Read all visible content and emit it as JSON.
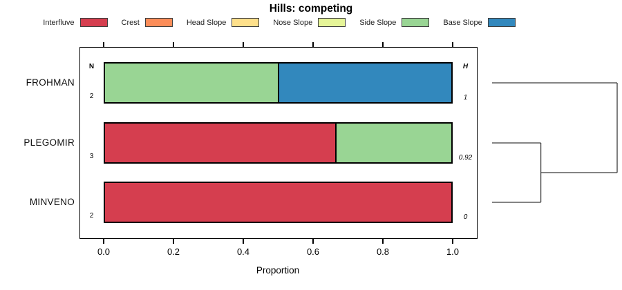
{
  "chart_data": {
    "type": "bar",
    "orientation": "horizontal",
    "stacked": true,
    "title": "Hills: competing",
    "xlabel": "Proportion",
    "xlim": [
      0,
      1
    ],
    "x_ticks": [
      {
        "value": 0.0,
        "label": "0.0"
      },
      {
        "value": 0.2,
        "label": "0.2"
      },
      {
        "value": 0.4,
        "label": "0.4"
      },
      {
        "value": 0.6,
        "label": "0.6"
      },
      {
        "value": 0.8,
        "label": "0.8"
      },
      {
        "value": 1.0,
        "label": "1.0"
      }
    ],
    "legend": {
      "position": "top",
      "entries": [
        {
          "label": "Interfluve",
          "color": "#d53e4f"
        },
        {
          "label": "Crest",
          "color": "#fc8d59"
        },
        {
          "label": "Head Slope",
          "color": "#fee08b"
        },
        {
          "label": "Nose Slope",
          "color": "#e6f598"
        },
        {
          "label": "Side Slope",
          "color": "#99d594"
        },
        {
          "label": "Base Slope",
          "color": "#3288bd"
        }
      ]
    },
    "columns": {
      "n_header": "N",
      "h_header": "H"
    },
    "rows": [
      {
        "label": "FROHMAN",
        "n": "2",
        "h": "1",
        "segments": [
          {
            "class": "Side Slope",
            "value": 0.5
          },
          {
            "class": "Base Slope",
            "value": 0.5
          }
        ]
      },
      {
        "label": "PLEGOMIR",
        "n": "3",
        "h": "0.92",
        "segments": [
          {
            "class": "Interfluve",
            "value": 0.667
          },
          {
            "class": "Side Slope",
            "value": 0.333
          }
        ]
      },
      {
        "label": "MINVENO",
        "n": "2",
        "h": "0",
        "segments": [
          {
            "class": "Interfluve",
            "value": 1.0
          }
        ]
      }
    ],
    "dendrogram": {
      "merges": [
        {
          "members": [
            "PLEGOMIR",
            "MINVENO"
          ],
          "height": 0.39
        },
        {
          "members": [
            "FROHMAN",
            "merge0"
          ],
          "height": 1.0
        }
      ]
    }
  }
}
